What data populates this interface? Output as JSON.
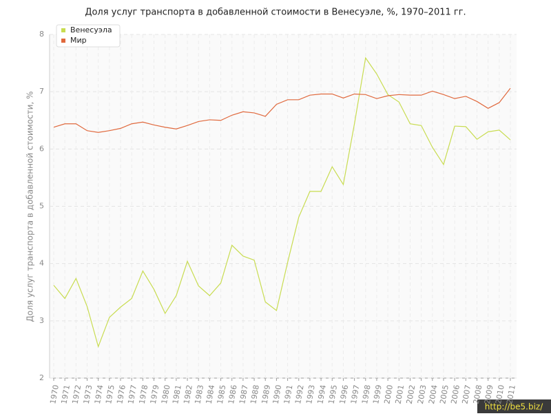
{
  "chart_data": {
    "type": "line",
    "title": "Доля услуг транспорта в добавленной стоимости в Венесуэле, %, 1970–2011 гг.",
    "y_label": "Доля услуг транспорта в добавленной стоимости, %",
    "categories": [
      "1970",
      "1971",
      "1972",
      "1973",
      "1974",
      "1975",
      "1976",
      "1977",
      "1978",
      "1979",
      "1980",
      "1981",
      "1982",
      "1983",
      "1984",
      "1985",
      "1986",
      "1987",
      "1988",
      "1989",
      "1990",
      "1991",
      "1992",
      "1993",
      "1994",
      "1995",
      "1996",
      "1997",
      "1998",
      "1999",
      "2000",
      "2001",
      "2002",
      "2003",
      "2004",
      "2005",
      "2006",
      "2007",
      "2008",
      "2009",
      "2010",
      "2011"
    ],
    "series": [
      {
        "name": "Венесуэла",
        "color": "#c8dc50",
        "values": [
          3.62,
          3.39,
          3.74,
          3.25,
          2.55,
          3.06,
          3.24,
          3.39,
          3.87,
          3.55,
          3.13,
          3.44,
          4.04,
          3.61,
          3.44,
          3.66,
          4.32,
          4.13,
          4.06,
          3.33,
          3.18,
          4.02,
          4.81,
          5.26,
          5.26,
          5.69,
          5.38,
          6.44,
          7.59,
          7.31,
          6.95,
          6.82,
          6.44,
          6.41,
          6.03,
          5.73,
          6.4,
          6.39,
          6.17,
          6.3,
          6.33,
          6.16
        ]
      },
      {
        "name": "Мир",
        "color": "#e0683c",
        "values": [
          6.38,
          6.44,
          6.44,
          6.32,
          6.29,
          6.32,
          6.36,
          6.44,
          6.47,
          6.42,
          6.38,
          6.35,
          6.41,
          6.48,
          6.51,
          6.5,
          6.59,
          6.65,
          6.63,
          6.57,
          6.78,
          6.86,
          6.86,
          6.94,
          6.96,
          6.96,
          6.89,
          6.96,
          6.95,
          6.88,
          6.93,
          6.95,
          6.94,
          6.94,
          7.01,
          6.95,
          6.88,
          6.92,
          6.83,
          6.71,
          6.81,
          7.06
        ]
      }
    ],
    "ylim": [
      2,
      8
    ],
    "yticks": [
      2,
      3,
      4,
      5,
      6,
      7,
      8
    ],
    "grid": true,
    "legend": "top-left",
    "watermark": "http://be5.biz/"
  }
}
